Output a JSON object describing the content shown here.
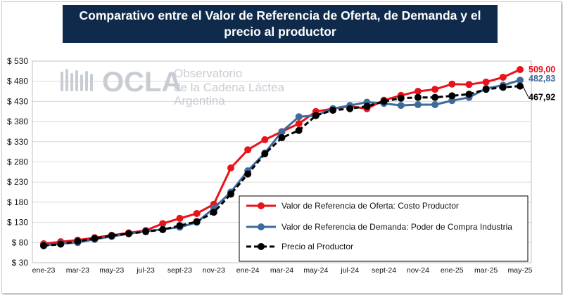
{
  "chart_data": {
    "type": "line",
    "title": "Comparativo entre el Valor de Referencia de Oferta, de Demanda y el precio al productor",
    "y_ticks": [
      "$ 30",
      "$ 80",
      "$ 130",
      "$ 180",
      "$ 230",
      "$ 280",
      "$ 330",
      "$ 380",
      "$ 430",
      "$ 480",
      "$ 530"
    ],
    "ylim": [
      30,
      530
    ],
    "x_tick_labels": [
      "ene-23",
      "mar-23",
      "may-23",
      "jul-23",
      "sept-23",
      "nov-23",
      "ene-24",
      "mar-24",
      "may-24",
      "jul-24",
      "sept-24",
      "nov-24",
      "ene-25",
      "mar-25",
      "may-25"
    ],
    "x": [
      "ene-23",
      "feb-23",
      "mar-23",
      "abr-23",
      "may-23",
      "jun-23",
      "jul-23",
      "ago-23",
      "sept-23",
      "oct-23",
      "nov-23",
      "dic-23",
      "ene-24",
      "feb-24",
      "mar-24",
      "abr-24",
      "may-24",
      "jun-24",
      "jul-24",
      "ago-24",
      "sept-24",
      "oct-24",
      "nov-24",
      "dic-24",
      "ene-25",
      "feb-25",
      "mar-25",
      "abr-25",
      "may-25"
    ],
    "series": [
      {
        "name": "Valor de Referencia de Oferta: Costo Productor",
        "color": "#e8131b",
        "dash": false,
        "values": [
          77,
          82,
          86,
          92,
          98,
          104,
          110,
          127,
          140,
          152,
          175,
          265,
          310,
          335,
          355,
          375,
          405,
          412,
          418,
          412,
          433,
          445,
          455,
          460,
          473,
          472,
          478,
          490,
          509
        ]
      },
      {
        "name": "Valor de Referencia de Demanda: Poder de Compra Industria",
        "color": "#3d6b9a",
        "dash": false,
        "values": [
          73,
          77,
          80,
          88,
          95,
          102,
          108,
          113,
          118,
          130,
          165,
          205,
          258,
          302,
          355,
          392,
          395,
          412,
          420,
          428,
          425,
          420,
          422,
          422,
          432,
          440,
          462,
          470,
          482.83
        ]
      },
      {
        "name": "Precio al Productor",
        "color": "#000000",
        "dash": true,
        "values": [
          72,
          76,
          83,
          90,
          97,
          102,
          107,
          112,
          122,
          132,
          155,
          200,
          250,
          300,
          340,
          358,
          395,
          408,
          412,
          418,
          430,
          438,
          440,
          440,
          444,
          448,
          460,
          465,
          467.92
        ]
      }
    ],
    "end_labels": [
      {
        "text": "509,00",
        "color": "#e8131b"
      },
      {
        "text": "482,83",
        "color": "#3d6b9a"
      },
      {
        "text": "467,92",
        "color": "#000000"
      }
    ],
    "grid": true,
    "legend_position": "bottom-right"
  },
  "watermark": {
    "logo": "OCLA",
    "line1": "Observatorio",
    "line2": "de la Cadena Láctea",
    "line3": "Argentina"
  }
}
